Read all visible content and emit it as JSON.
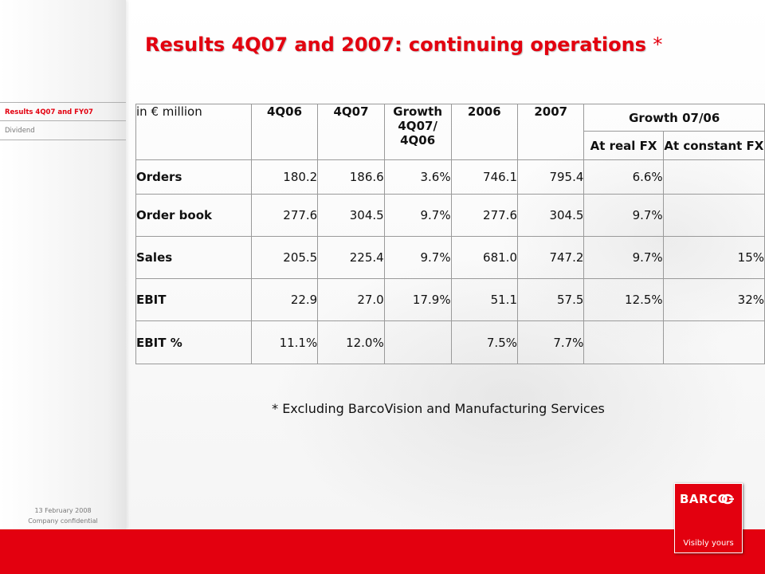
{
  "title": {
    "text": "Results 4Q07 and 2007: continuing operations",
    "asterisk": "*"
  },
  "sidebar": {
    "items": [
      {
        "label": "Results 4Q07 and FY07",
        "active": true
      },
      {
        "label": "Dividend",
        "active": false
      }
    ],
    "footer_date": "13 February 2008",
    "footer_conf": "Company confidential"
  },
  "table": {
    "unit_label": "in € million",
    "headers": {
      "q06": "4Q06",
      "q07": "4Q07",
      "growth_q": "Growth 4Q07/ 4Q06",
      "y06": "2006",
      "y07": "2007",
      "growth_y": "Growth 07/06",
      "real_fx": "At real FX",
      "constant_fx": "At constant FX"
    },
    "rows": [
      {
        "label": "Orders",
        "q06": "180.2",
        "q07": "186.6",
        "gq": "3.6%",
        "y06": "746.1",
        "y07": "795.4",
        "real": "6.6%",
        "constant": ""
      },
      {
        "label": "Order book",
        "q06": "277.6",
        "q07": "304.5",
        "gq": "9.7%",
        "y06": "277.6",
        "y07": "304.5",
        "real": "9.7%",
        "constant": ""
      },
      {
        "label": "Sales",
        "q06": "205.5",
        "q07": "225.4",
        "gq": "9.7%",
        "y06": "681.0",
        "y07": "747.2",
        "real": "9.7%",
        "constant": "15%"
      },
      {
        "label": "EBIT",
        "q06": "22.9",
        "q07": "27.0",
        "gq": "17.9%",
        "y06": "51.1",
        "y07": "57.5",
        "real": "12.5%",
        "constant": "32%"
      },
      {
        "label": "EBIT %",
        "q06": "11.1%",
        "q07": "12.0%",
        "gq": "",
        "y06": "7.5%",
        "y07": "7.7%",
        "real": "",
        "constant": ""
      }
    ]
  },
  "footnote": "* Excluding BarcoVision and Manufacturing Services",
  "logo": {
    "word": "BARCO",
    "tagline": "Visibly yours"
  },
  "colors": {
    "brand_red": "#e3000f"
  }
}
